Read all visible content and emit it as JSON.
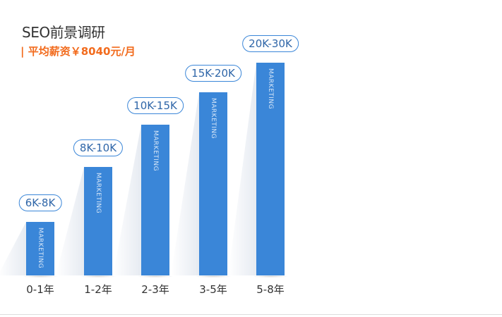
{
  "chart_data": {
    "type": "bar",
    "title": "SEO前景调研",
    "subtitle": "| 平均薪资￥8040元/月",
    "categories": [
      "0-1年",
      "1-2年",
      "2-3年",
      "3-5年",
      "5-8年"
    ],
    "data_labels": [
      "6K-8K",
      "8K-10K",
      "10K-15K",
      "15K-20K",
      "20K-30K"
    ],
    "bar_levels_percent": [
      25,
      51,
      71,
      86,
      100
    ],
    "bar_text": "MARKETING",
    "grid": false,
    "colors": {
      "bar": "#3a86d8",
      "subtitle": "#f26b1d"
    }
  }
}
